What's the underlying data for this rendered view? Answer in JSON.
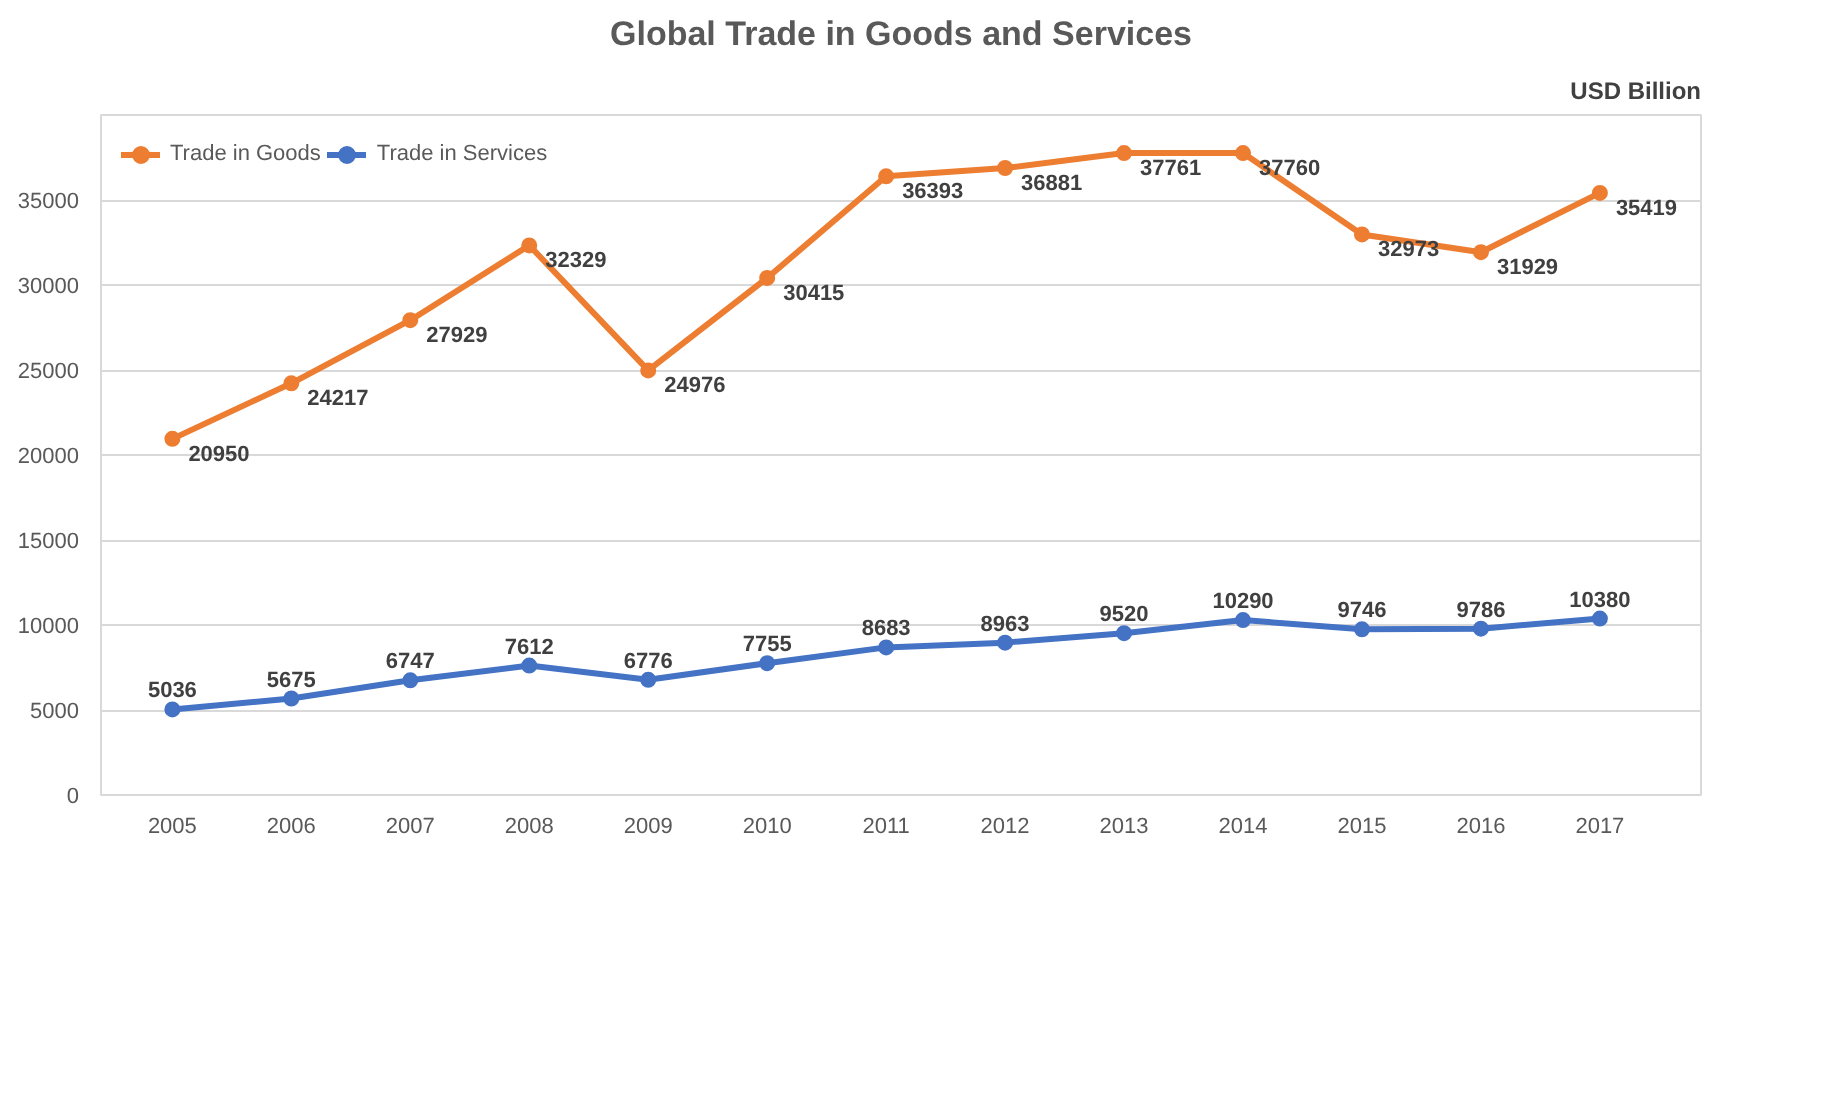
{
  "chart_data": {
    "type": "line",
    "title": "Global Trade in Goods and Services",
    "categories": [
      "2005",
      "2006",
      "2007",
      "2008",
      "2009",
      "2010",
      "2011",
      "2012",
      "2013",
      "2014",
      "2015",
      "2016",
      "2017"
    ],
    "series": [
      {
        "name": "Trade in Goods",
        "color": "#ed7d31",
        "values": [
          20950,
          24217,
          27929,
          32329,
          24976,
          30415,
          36393,
          36881,
          37761,
          37760,
          32973,
          31929,
          35419
        ]
      },
      {
        "name": "Trade in Services",
        "color": "#4472c4",
        "values": [
          5036,
          5675,
          6747,
          7612,
          6776,
          7755,
          8683,
          8963,
          9520,
          10290,
          9746,
          9786,
          10380
        ]
      }
    ],
    "ylim": [
      0,
      40000
    ],
    "yticks": [
      0,
      5000,
      10000,
      15000,
      20000,
      25000,
      30000,
      35000
    ],
    "annotations": [
      "USD Billion"
    ],
    "grid": "y",
    "legend": "top left",
    "marker": "circle",
    "line_style": "solid",
    "data_labels": true
  }
}
